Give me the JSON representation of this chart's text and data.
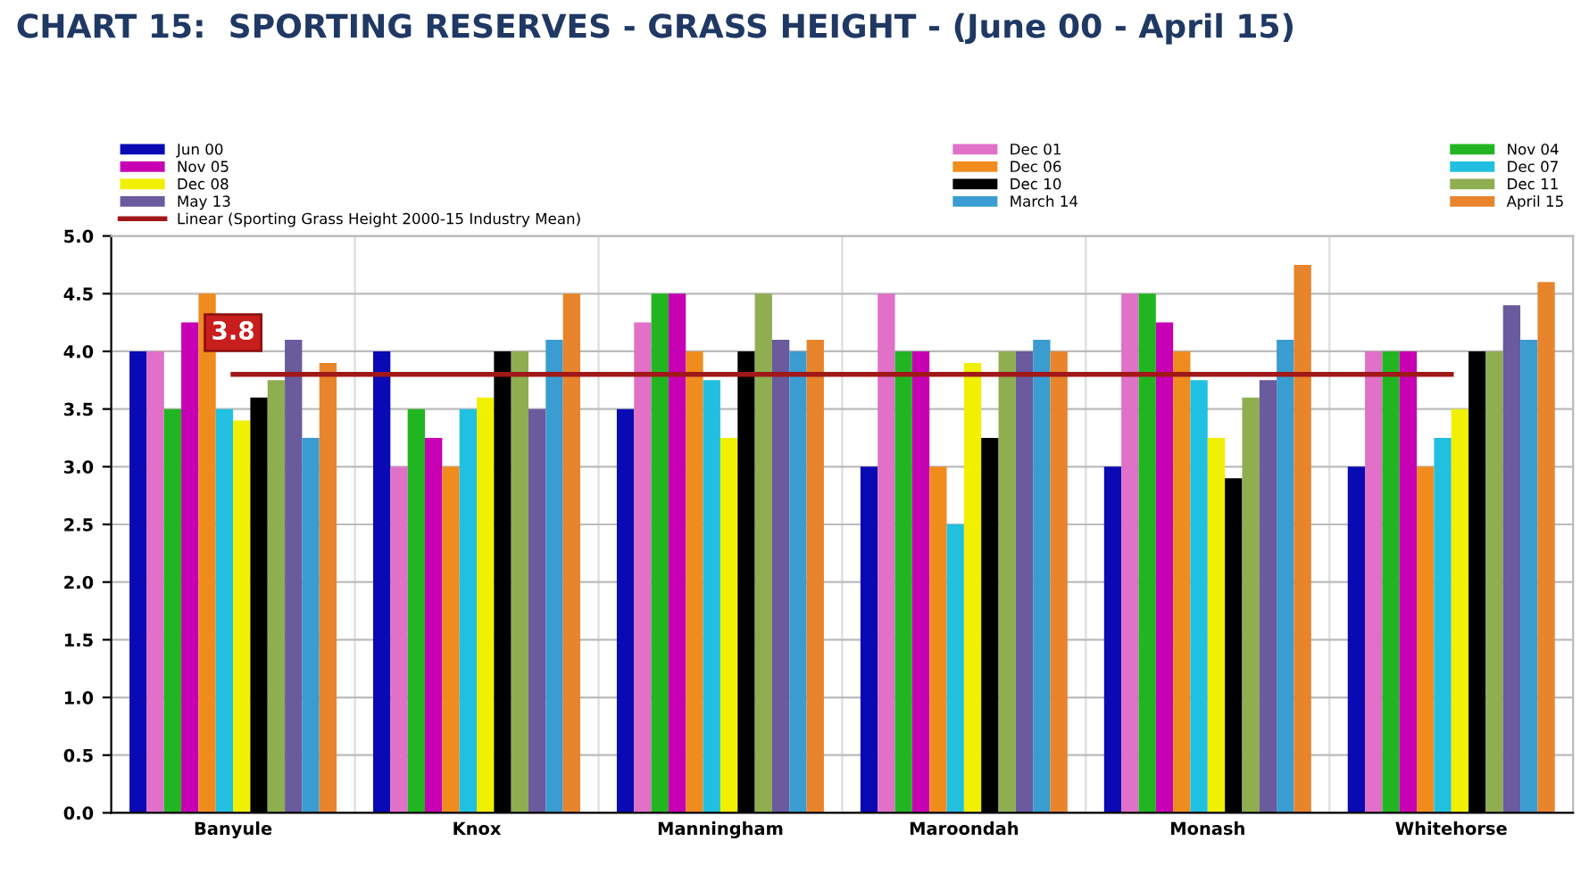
{
  "chart_data": {
    "type": "bar",
    "title": "CHART 15:  SPORTING RESERVES - GRASS HEIGHT - (June 00 - April 15)",
    "categories": [
      "Banyule",
      "Knox",
      "Manningham",
      "Maroondah",
      "Monash",
      "Whitehorse"
    ],
    "series": [
      {
        "name": "Jun 00",
        "color": "#0a0ab4",
        "values": [
          4.0,
          4.0,
          3.5,
          3.0,
          3.0,
          3.0
        ]
      },
      {
        "name": "Dec 01",
        "color": "#e070c8",
        "values": [
          4.0,
          3.0,
          4.25,
          4.5,
          4.5,
          4.0
        ]
      },
      {
        "name": "Nov 04",
        "color": "#22b522",
        "values": [
          3.5,
          3.5,
          4.5,
          4.0,
          4.5,
          4.0
        ]
      },
      {
        "name": "Nov 05",
        "color": "#c800b4",
        "values": [
          4.25,
          3.25,
          4.5,
          4.0,
          4.25,
          4.0
        ]
      },
      {
        "name": "Dec 06",
        "color": "#f08c1e",
        "values": [
          4.5,
          3.0,
          4.0,
          3.0,
          4.0,
          3.0
        ]
      },
      {
        "name": "Dec 07",
        "color": "#22c0e0",
        "values": [
          3.5,
          3.5,
          3.75,
          2.5,
          3.75,
          3.25
        ]
      },
      {
        "name": "Dec 08",
        "color": "#f0f000",
        "values": [
          3.4,
          3.6,
          3.25,
          3.9,
          3.25,
          3.5
        ]
      },
      {
        "name": "Dec 10",
        "color": "#000000",
        "values": [
          3.6,
          4.0,
          4.0,
          3.25,
          2.9,
          4.0
        ]
      },
      {
        "name": "Dec 11",
        "color": "#8fae50",
        "values": [
          3.75,
          4.0,
          4.5,
          4.0,
          3.6,
          4.0
        ]
      },
      {
        "name": "May 13",
        "color": "#6a5a9e",
        "values": [
          4.1,
          3.5,
          4.1,
          4.0,
          3.75,
          4.4
        ]
      },
      {
        "name": "March 14",
        "color": "#3a9cd0",
        "values": [
          3.25,
          4.1,
          4.0,
          4.1,
          4.1,
          4.1
        ]
      },
      {
        "name": "April 15",
        "color": "#e8842c",
        "values": [
          3.9,
          4.5,
          4.1,
          4.0,
          4.75,
          4.6
        ]
      },
      {
        "name": "Linear (Sporting Grass Height 2000-15 Industry Mean)",
        "type": "line",
        "color": "#a01818",
        "values": [
          3.8,
          3.8,
          3.8,
          3.8,
          3.8,
          3.8
        ],
        "value_labels": [
          "3.8",
          null,
          null,
          null,
          null,
          null
        ]
      }
    ],
    "ylim": [
      0,
      5
    ],
    "yticks": [
      {
        "value": 0,
        "label": "0.0"
      },
      {
        "value": 0.5,
        "label": "0.5"
      },
      {
        "value": 1,
        "label": "1.0"
      },
      {
        "value": 1.5,
        "label": "1.5"
      },
      {
        "value": 2,
        "label": "2.0"
      },
      {
        "value": 2.5,
        "label": "2.5"
      },
      {
        "value": 3,
        "label": "3.0"
      },
      {
        "value": 3.5,
        "label": "3.5"
      },
      {
        "value": 4,
        "label": "4.0"
      },
      {
        "value": 4.5,
        "label": "4.5"
      },
      {
        "value": 5,
        "label": "5.0"
      }
    ],
    "grid": true,
    "legend": "top"
  }
}
